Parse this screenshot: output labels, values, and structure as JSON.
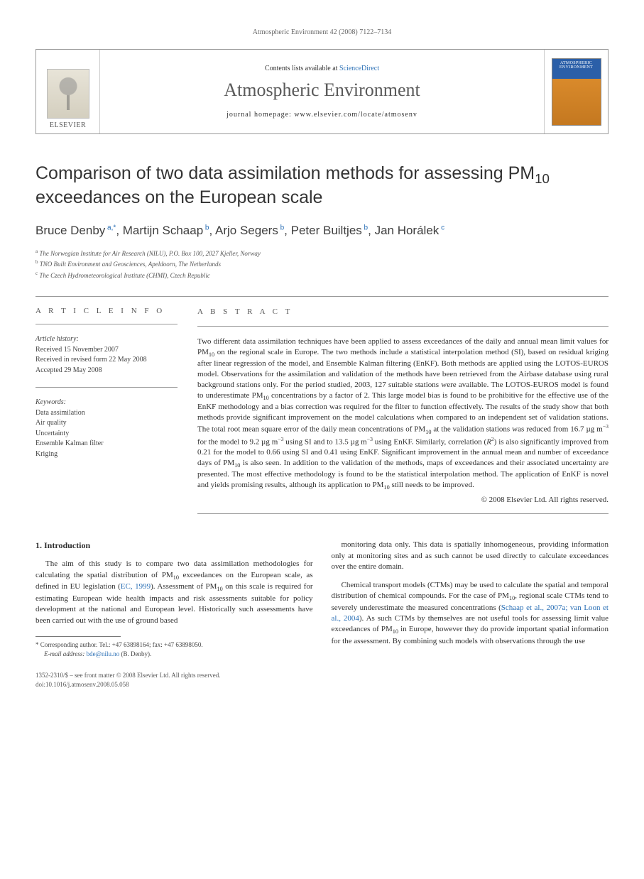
{
  "running_head": "Atmospheric Environment 42 (2008) 7122–7134",
  "header": {
    "publisher_label": "ELSEVIER",
    "contents_prefix": "Contents lists available at ",
    "contents_link": "ScienceDirect",
    "journal_name": "Atmospheric Environment",
    "homepage_prefix": "journal homepage: ",
    "homepage_url": "www.elsevier.com/locate/atmosenv",
    "cover_title": "ATMOSPHERIC ENVIRONMENT"
  },
  "title_html": "Comparison of two data assimilation methods for assessing PM<sub>10</sub> exceedances on the European scale",
  "authors_html": "Bruce Denby<span class='sup'> a,</span><span class='sup'>*</span>, Martijn Schaap<span class='sup'> b</span>, Arjo Segers<span class='sup'> b</span>, Peter Builtjes<span class='sup'> b</span>, Jan Horálek<span class='sup'> c</span>",
  "affiliations": [
    {
      "sup": "a",
      "text": "The Norwegian Institute for Air Research (NILU), P.O. Box 100, 2027 Kjeller, Norway"
    },
    {
      "sup": "b",
      "text": "TNO Built Environment and Geosciences, Apeldoorn, The Netherlands"
    },
    {
      "sup": "c",
      "text": "The Czech Hydrometeorological Institute (CHMI), Czech Republic"
    }
  ],
  "article_info": {
    "heading": "A R T I C L E  I N F O",
    "history_label": "Article history:",
    "history": [
      "Received 15 November 2007",
      "Received in revised form 22 May 2008",
      "Accepted 29 May 2008"
    ],
    "keywords_label": "Keywords:",
    "keywords": [
      "Data assimilation",
      "Air quality",
      "Uncertainty",
      "Ensemble Kalman filter",
      "Kriging"
    ]
  },
  "abstract": {
    "heading": "A B S T R A C T",
    "body_html": "Two different data assimilation techniques have been applied to assess exceedances of the daily and annual mean limit values for PM<sub>10</sub> on the regional scale in Europe. The two methods include a statistical interpolation method (SI), based on residual kriging after linear regression of the model, and Ensemble Kalman filtering (EnKF). Both methods are applied using the LOTOS-EUROS model. Observations for the assimilation and validation of the methods have been retrieved from the Airbase database using rural background stations only. For the period studied, 2003, 127 suitable stations were available. The LOTOS-EUROS model is found to underestimate PM<sub>10</sub> concentrations by a factor of 2. This large model bias is found to be prohibitive for the effective use of the EnKF methodology and a bias correction was required for the filter to function effectively. The results of the study show that both methods provide significant improvement on the model calculations when compared to an independent set of validation stations. The total root mean square error of the daily mean concentrations of PM<sub>10</sub> at the validation stations was reduced from 16.7 µg m<sup>−3</sup> for the model to 9.2 µg m<sup>−3</sup> using SI and to 13.5 µg m<sup>−3</sup> using EnKF. Similarly, correlation (<i>R</i><sup>2</sup>) is also significantly improved from 0.21 for the model to 0.66 using SI and 0.41 using EnKF. Significant improvement in the annual mean and number of exceedance days of PM<sub>10</sub> is also seen. In addition to the validation of the methods, maps of exceedances and their associated uncertainty are presented. The most effective methodology is found to be the statistical interpolation method. The application of EnKF is novel and yields promising results, although its application to PM<sub>10</sub> still needs to be improved.",
    "copyright": "© 2008 Elsevier Ltd. All rights reserved."
  },
  "section1": {
    "heading": "1.  Introduction",
    "p1_html": "The aim of this study is to compare two data assimilation methodologies for calculating the spatial distribution of PM<sub>10</sub> exceedances on the European scale, as defined in EU legislation (<a href='#' data-name='citation-link' data-interactable='true'>EC, 1999</a>). Assessment of PM<sub>10</sub> on this scale is required for estimating European wide health impacts and risk assessments suitable for policy development at the national and European level. Historically such assessments have been carried out with the use of ground based",
    "p2_html": "monitoring data only. This data is spatially inhomogeneous, providing information only at monitoring sites and as such cannot be used directly to calculate exceedances over the entire domain.",
    "p3_html": "Chemical transport models (CTMs) may be used to calculate the spatial and temporal distribution of chemical compounds. For the case of PM<sub>10</sub>, regional scale CTMs tend to severely underestimate the measured concentrations (<a href='#' data-name='citation-link' data-interactable='true'>Schaap et al., 2007a; van Loon et al., 2004</a>). As such CTMs by themselves are not useful tools for assessing limit value exceedances of PM<sub>10</sub> in Europe, however they do provide important spatial information for the assessment. By combining such models with observations through the use"
  },
  "footnote": {
    "corr_html": "* Corresponding author. Tel.: +47 63898164; fax: +47 63898050.",
    "email_label": "E-mail address:",
    "email": "bde@nilu.no",
    "email_person": "(B. Denby)."
  },
  "bottom": {
    "line1": "1352-2310/$ – see front matter © 2008 Elsevier Ltd. All rights reserved.",
    "line2": "doi:10.1016/j.atmosenv.2008.05.058"
  },
  "colors": {
    "link": "#2a6fb5",
    "text": "#2f2f2f",
    "muted": "#666666",
    "rule": "#999999"
  }
}
